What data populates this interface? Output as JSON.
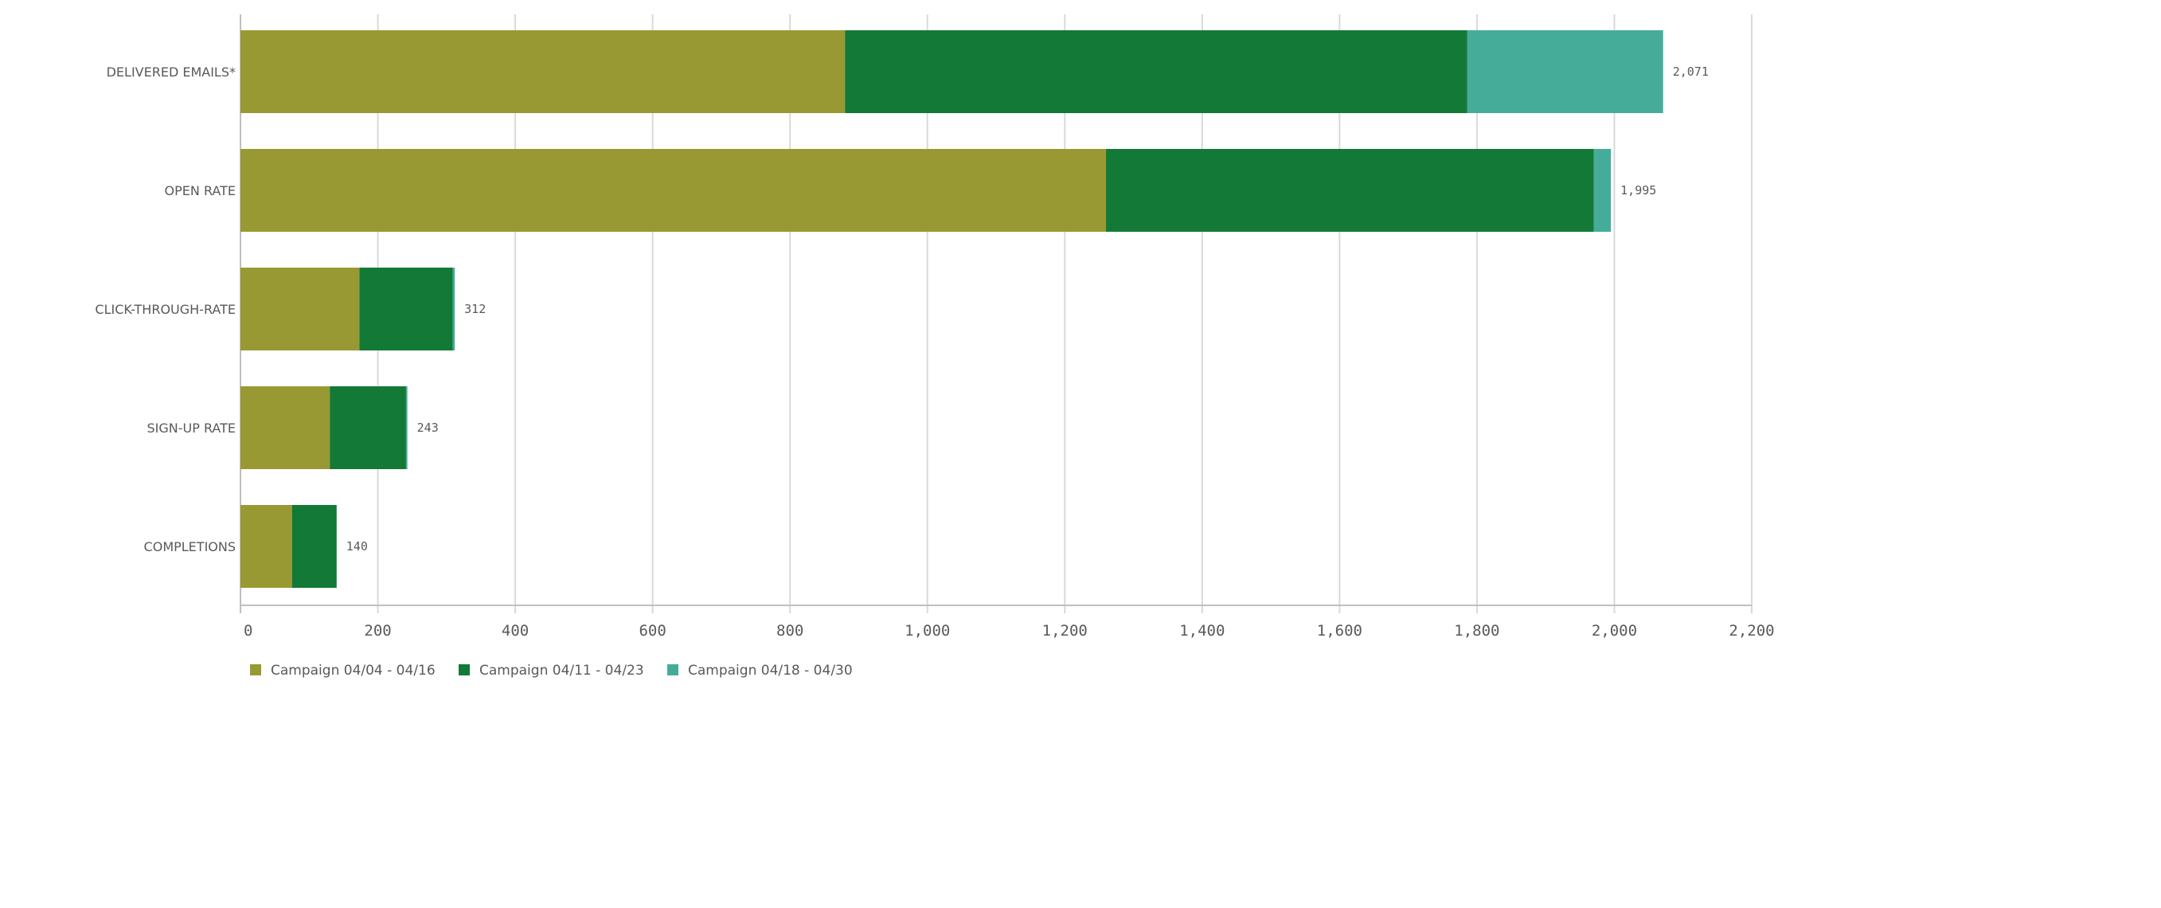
{
  "chart_data": {
    "type": "bar",
    "orientation": "horizontal",
    "stacked": true,
    "categories": [
      "DELIVERED EMAILS*",
      "OPEN RATE",
      "CLICK-THROUGH-RATE",
      "SIGN-UP RATE",
      "COMPLETIONS"
    ],
    "series": [
      {
        "name": "Campaign 04/04 - 04/16",
        "color": "#999933",
        "values": [
          880,
          1260,
          173,
          130,
          75
        ]
      },
      {
        "name": "Campaign 04/11 - 04/23",
        "color": "#137936",
        "values": [
          906,
          710,
          136,
          111,
          65
        ]
      },
      {
        "name": "Campaign 04/18 - 04/30",
        "color": "#46ac9a",
        "values": [
          285,
          25,
          3,
          2,
          0
        ]
      }
    ],
    "totals": [
      "2,071",
      "1,995",
      "312",
      "243",
      "140"
    ],
    "xticks": [
      "0",
      "200",
      "400",
      "600",
      "800",
      "1,000",
      "1,200",
      "1,400",
      "1,600",
      "1,800",
      "2,000",
      "2,200"
    ],
    "xlim": [
      0,
      2200
    ],
    "title": "",
    "xlabel": "",
    "ylabel": "",
    "grid": true,
    "legend": "bottom-left"
  }
}
